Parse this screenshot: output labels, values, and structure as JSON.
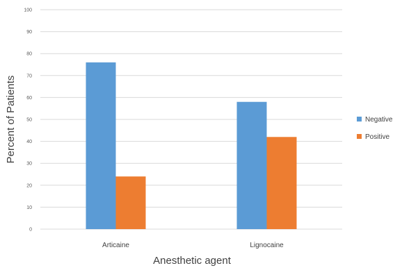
{
  "chart_data": {
    "type": "bar",
    "categories": [
      "Articaine",
      "Lignocaine"
    ],
    "series": [
      {
        "name": "Negative",
        "values": [
          76,
          58
        ],
        "color": "#5B9BD5"
      },
      {
        "name": "Positive",
        "values": [
          24,
          42
        ],
        "color": "#ED7D31"
      }
    ],
    "xlabel": "Anesthetic agent",
    "ylabel": "Percent of Patients",
    "ylim": [
      0,
      100
    ],
    "yticks": [
      0,
      10,
      20,
      30,
      40,
      50,
      60,
      70,
      80,
      90,
      100
    ],
    "grid": true,
    "legend": "right",
    "gridColor": "#D9D9D9"
  }
}
